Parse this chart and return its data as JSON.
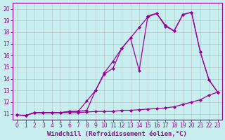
{
  "xlabel": "Windchill (Refroidissement éolien,°C)",
  "bg_color": "#c8eef0",
  "line_color": "#990099",
  "xlim": [
    -0.5,
    23.5
  ],
  "ylim": [
    10.5,
    20.5
  ],
  "yticks": [
    11,
    12,
    13,
    14,
    15,
    16,
    17,
    18,
    19,
    20
  ],
  "xticks": [
    0,
    1,
    2,
    3,
    4,
    5,
    6,
    7,
    8,
    9,
    10,
    11,
    12,
    13,
    14,
    15,
    16,
    17,
    18,
    19,
    20,
    21,
    22,
    23
  ],
  "line1_x": [
    0,
    1,
    2,
    3,
    4,
    5,
    6,
    7,
    8,
    9,
    10,
    11,
    12,
    13,
    14,
    15,
    16,
    17,
    18,
    19,
    20,
    21,
    22,
    23
  ],
  "line1_y": [
    10.9,
    10.85,
    11.1,
    11.1,
    11.1,
    11.1,
    11.1,
    11.1,
    11.15,
    11.2,
    11.2,
    11.2,
    11.3,
    11.3,
    11.35,
    11.4,
    11.45,
    11.5,
    11.6,
    11.8,
    12.0,
    12.2,
    12.6,
    12.85
  ],
  "line2_x": [
    0,
    1,
    2,
    3,
    4,
    5,
    6,
    7,
    8,
    9,
    10,
    11,
    12,
    13,
    14,
    15,
    16,
    17,
    18,
    19,
    20,
    21,
    22,
    23
  ],
  "line2_y": [
    10.9,
    10.85,
    11.1,
    11.1,
    11.1,
    11.1,
    11.2,
    11.2,
    11.3,
    13.0,
    14.4,
    14.9,
    16.6,
    17.5,
    14.7,
    19.4,
    19.6,
    18.5,
    18.1,
    19.5,
    19.7,
    16.3,
    13.9,
    12.85
  ],
  "line3_x": [
    0,
    1,
    2,
    3,
    4,
    5,
    6,
    7,
    8,
    9,
    10,
    11,
    12,
    13,
    14,
    15,
    16,
    17,
    18,
    19,
    20,
    21,
    22,
    23
  ],
  "line3_y": [
    10.9,
    10.85,
    11.1,
    11.1,
    11.1,
    11.1,
    11.2,
    11.2,
    12.1,
    13.0,
    14.5,
    15.5,
    16.6,
    17.5,
    18.4,
    19.3,
    19.6,
    18.6,
    18.1,
    19.5,
    19.7,
    16.3,
    13.9,
    12.85
  ],
  "grid_color": "#b0b0b0",
  "marker": "D",
  "markersize": 2.0,
  "linewidth": 0.9,
  "xlabel_fontsize": 6.5,
  "tick_fontsize": 5.5
}
